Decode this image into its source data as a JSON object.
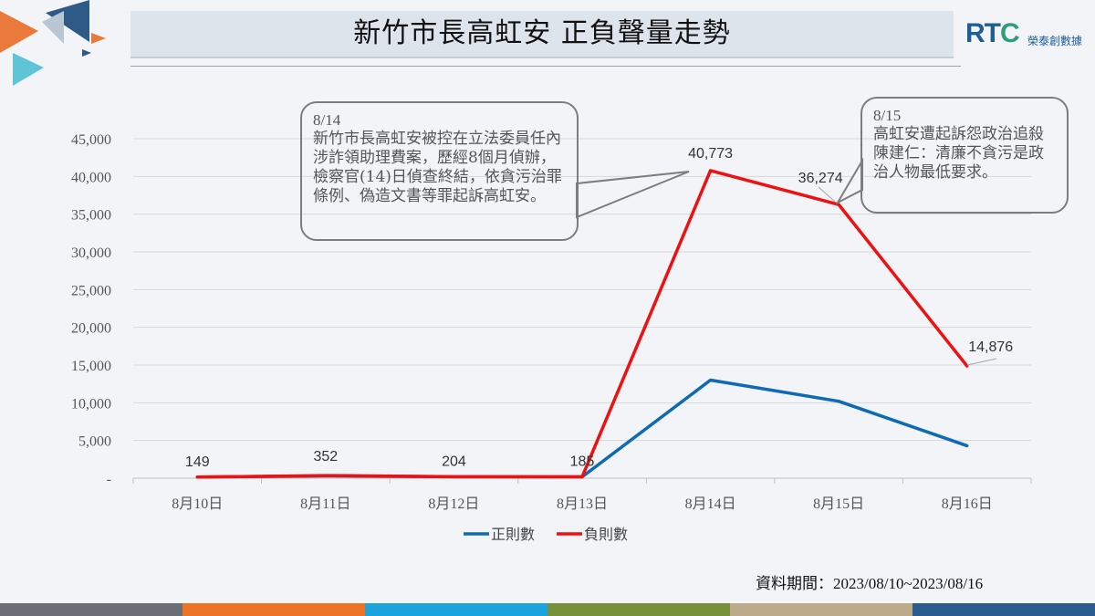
{
  "title": "新竹市長高虹安 正負聲量走勢",
  "logo": {
    "letters": "RTC",
    "subtitle": "榮泰創數據"
  },
  "callouts": [
    {
      "date": "8/14",
      "text": "新竹市長高虹安被控在立法委員任內涉詐領助理費案，歷經8個月偵辦，檢察官(14)日偵查終結，依貪污治罪條例、偽造文書等罪起訴高虹安。"
    },
    {
      "date": "8/15",
      "text": "高虹安遭起訴怨政治追殺 陳建仁：清廉不貪污是政治人物最低要求。"
    }
  ],
  "source": {
    "label": "資料期間：",
    "range": "2023/08/10~2023/08/16"
  },
  "colors": {
    "positive": "#0f6ab4",
    "negative": "#ee1111",
    "footer": [
      "#6b6f75",
      "#ed7426",
      "#1ba4dd",
      "#77913a",
      "#bcaa8a",
      "#2b5c8f"
    ],
    "decor": [
      "#ea7a3b",
      "#2d5a87",
      "#5ec4d6",
      "#b9c6d3"
    ]
  },
  "chart_data": {
    "type": "line",
    "categories": [
      "8月10日",
      "8月11日",
      "8月12日",
      "8月13日",
      "8月14日",
      "8月15日",
      "8月16日"
    ],
    "ylim": [
      0,
      45000
    ],
    "yticks": [
      0,
      5000,
      10000,
      15000,
      20000,
      25000,
      30000,
      35000,
      40000,
      45000
    ],
    "ytick_labels": [
      "-",
      "5,000",
      "10,000",
      "15,000",
      "20,000",
      "25,000",
      "30,000",
      "35,000",
      "40,000",
      "45,000"
    ],
    "grid": true,
    "legend": "bottom",
    "series": [
      {
        "name": "正則數",
        "color": "#0f6ab4",
        "values": [
          150,
          300,
          200,
          180,
          13000,
          10200,
          4300
        ],
        "labels": []
      },
      {
        "name": "負則數",
        "color": "#ee1111",
        "values": [
          149,
          352,
          204,
          185,
          40773,
          36274,
          14876
        ],
        "labels": [
          "149",
          "352",
          "204",
          "185",
          "40,773",
          "36,274",
          "14,876"
        ]
      }
    ]
  }
}
